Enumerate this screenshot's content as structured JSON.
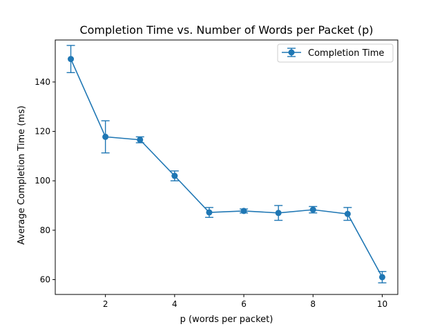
{
  "chart_data": {
    "type": "line",
    "title": "Completion Time vs. Number of Words per Packet (p)",
    "xlabel": "p (words per packet)",
    "ylabel": "Average Completion Time (ms)",
    "xlim": [
      0.55,
      10.45
    ],
    "ylim": [
      54,
      157
    ],
    "xticks": [
      2,
      4,
      6,
      8,
      10
    ],
    "yticks": [
      60,
      80,
      100,
      120,
      140
    ],
    "grid": false,
    "legend_position": "upper-right",
    "series": [
      {
        "name": "Completion Time",
        "color": "#1f77b4",
        "marker": "circle",
        "x": [
          1,
          2,
          3,
          4,
          5,
          6,
          7,
          8,
          9,
          10
        ],
        "y": [
          149.3,
          117.8,
          116.6,
          102.0,
          87.2,
          87.8,
          87.0,
          88.3,
          86.6,
          61.0
        ],
        "error": [
          5.5,
          6.5,
          1.2,
          2.0,
          2.0,
          0.8,
          3.0,
          1.3,
          2.6,
          2.3
        ]
      }
    ]
  }
}
